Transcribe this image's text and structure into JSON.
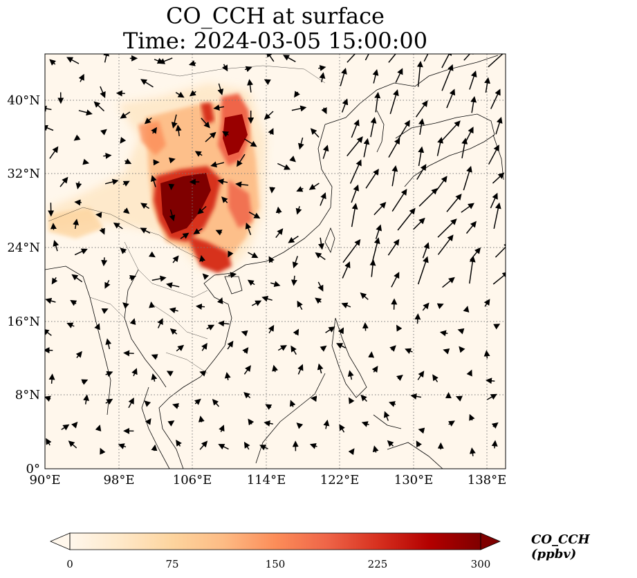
{
  "title": {
    "line1": "CO_CCH at surface",
    "line2": "Time: 2024-03-05 15:00:00"
  },
  "map": {
    "projection": "PlateCarree",
    "lon_range": [
      90,
      140
    ],
    "lat_range": [
      0,
      45
    ],
    "lon_ticks": [
      "90°E",
      "98°E",
      "106°E",
      "114°E",
      "122°E",
      "130°E",
      "138°E"
    ],
    "lat_ticks": [
      "0°",
      "8°N",
      "16°N",
      "24°N",
      "32°N",
      "40°N"
    ],
    "gridlines": "dotted",
    "coastlines": true,
    "borders": true,
    "wind_vectors": true
  },
  "colorbar": {
    "cmap": "OrRd",
    "label": "CO_CCH (ppbv)",
    "ticks": [
      "0",
      "75",
      "150",
      "225",
      "300"
    ],
    "range": [
      0,
      300
    ],
    "extend": "both",
    "colors": [
      "#fff7ec",
      "#fee8c8",
      "#fdd49e",
      "#fdbb84",
      "#fc8d59",
      "#ef6548",
      "#d7301f",
      "#b30000",
      "#7f0000"
    ]
  }
}
